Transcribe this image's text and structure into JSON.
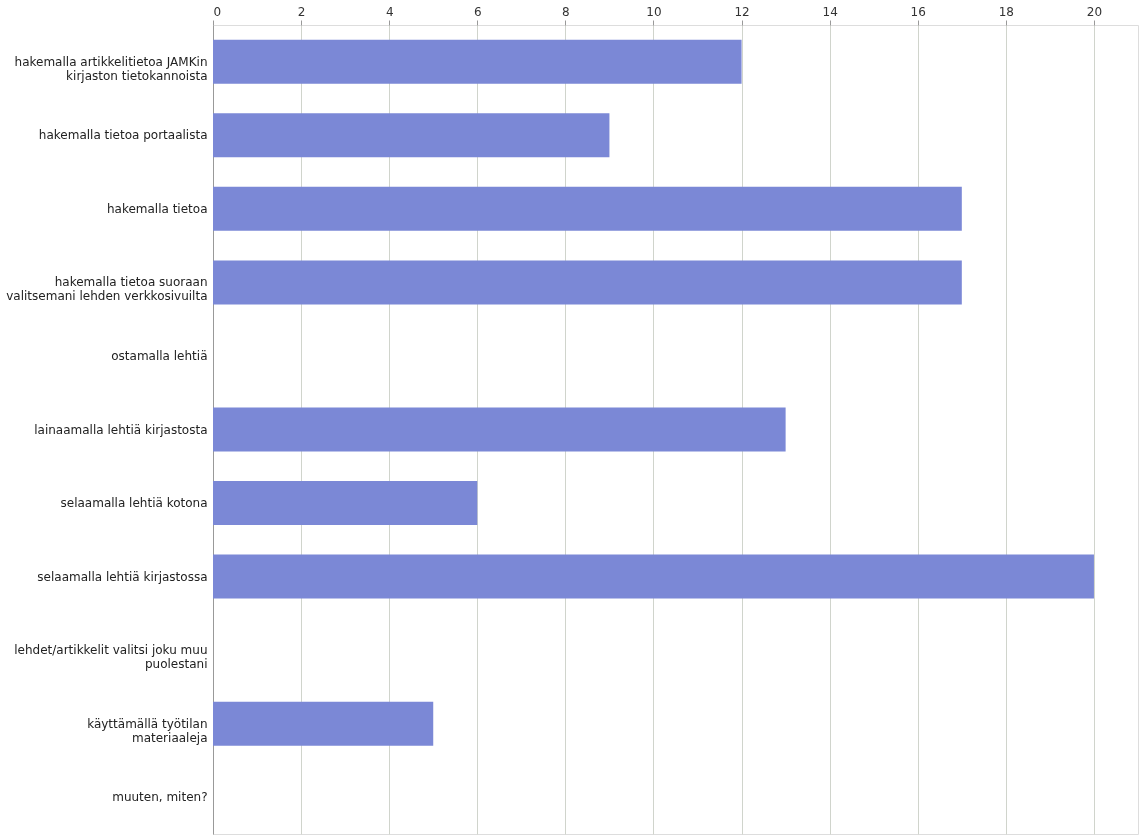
{
  "chart_data": {
    "type": "bar",
    "orientation": "horizontal",
    "categories": [
      "hakemalla artikkelitietoa JAMKin\nkirjaston tietokannoista",
      "hakemalla tietoa portaalista",
      "hakemalla tietoa",
      "hakemalla tietoa suoraan\nvalitsemani lehden verkkosivuilta",
      "ostamalla lehtiä",
      "lainaamalla lehtiä kirjastosta",
      "selaamalla lehtiä kotona",
      "selaamalla lehtiä kirjastossa",
      "lehdet/artikkelit valitsi joku muu\npuolestani",
      "käyttämällä työtilan\nmateriaaleja",
      "muuten, miten?"
    ],
    "values": [
      12,
      9,
      17,
      17,
      0,
      13,
      6,
      20,
      0,
      5,
      0
    ],
    "color": "#7b88d6",
    "xlim": [
      0,
      21
    ],
    "xticks": [
      0,
      2,
      4,
      6,
      8,
      10,
      12,
      14,
      16,
      18,
      20
    ],
    "grid": "x"
  }
}
